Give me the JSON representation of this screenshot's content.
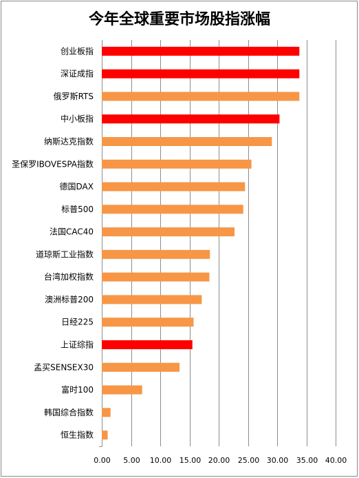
{
  "chart_data": {
    "type": "bar",
    "orientation": "horizontal",
    "title": "今年全球重要市场股指涨幅",
    "xlabel": "",
    "ylabel": "",
    "xlim": [
      0,
      40
    ],
    "xticks": [
      "0.00",
      "5.00",
      "10.00",
      "15.00",
      "20.00",
      "25.00",
      "30.00",
      "35.00",
      "40.00"
    ],
    "grid": "vertical",
    "legend": "none",
    "colors": {
      "highlight": "#ff0000",
      "default": "#f79646"
    },
    "categories": [
      "创业板指",
      "深证成指",
      "俄罗斯RTS",
      "中小板指",
      "纳斯达克指数",
      "圣保罗IBOVESPA指数",
      "德国DAX",
      "标普500",
      "法国CAC40",
      "道琼斯工业指数",
      "台湾加权指数",
      "澳洲标普200",
      "日经225",
      "上证综指",
      "孟买SENSEX30",
      "富时100",
      "韩国综合指数",
      "恒生指数"
    ],
    "values": [
      33.8,
      33.8,
      33.8,
      30.4,
      29.1,
      25.6,
      24.5,
      24.2,
      22.7,
      18.5,
      18.4,
      17.1,
      15.7,
      15.5,
      13.3,
      6.9,
      1.5,
      1.0
    ],
    "highlighted": [
      "创业板指",
      "深证成指",
      "中小板指",
      "上证综指"
    ]
  }
}
